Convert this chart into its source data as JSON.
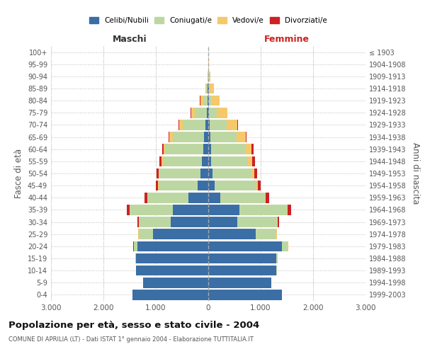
{
  "age_groups": [
    "0-4",
    "5-9",
    "10-14",
    "15-19",
    "20-24",
    "25-29",
    "30-34",
    "35-39",
    "40-44",
    "45-49",
    "50-54",
    "55-59",
    "60-64",
    "65-69",
    "70-74",
    "75-79",
    "80-84",
    "85-89",
    "90-94",
    "95-99",
    "100+"
  ],
  "birth_years": [
    "1999-2003",
    "1994-1998",
    "1989-1993",
    "1984-1988",
    "1979-1983",
    "1974-1978",
    "1969-1973",
    "1964-1968",
    "1959-1963",
    "1954-1958",
    "1949-1953",
    "1944-1948",
    "1939-1943",
    "1934-1938",
    "1929-1933",
    "1924-1928",
    "1919-1923",
    "1914-1918",
    "1909-1913",
    "1904-1908",
    "≤ 1903"
  ],
  "colors": {
    "celibi": "#3a6ea5",
    "coniugati": "#bdd7a3",
    "vedovi": "#f5c96a",
    "divorziati": "#cc2222"
  },
  "maschi": {
    "celibi": [
      1450,
      1250,
      1380,
      1380,
      1350,
      1050,
      720,
      680,
      380,
      200,
      150,
      120,
      100,
      80,
      60,
      30,
      15,
      10,
      5,
      2,
      2
    ],
    "coniugati": [
      0,
      0,
      5,
      15,
      70,
      280,
      600,
      820,
      780,
      750,
      780,
      750,
      720,
      600,
      430,
      230,
      80,
      30,
      10,
      0,
      0
    ],
    "vedovi": [
      0,
      0,
      0,
      0,
      5,
      5,
      5,
      5,
      5,
      5,
      10,
      20,
      30,
      60,
      70,
      70,
      60,
      20,
      5,
      0,
      0
    ],
    "divorziati": [
      0,
      0,
      0,
      0,
      5,
      5,
      20,
      55,
      55,
      45,
      40,
      40,
      30,
      15,
      10,
      10,
      5,
      0,
      0,
      0,
      0
    ]
  },
  "femmine": {
    "celibi": [
      1400,
      1200,
      1300,
      1300,
      1400,
      900,
      560,
      600,
      230,
      120,
      80,
      60,
      50,
      35,
      25,
      15,
      10,
      8,
      5,
      2,
      2
    ],
    "coniugati": [
      0,
      0,
      5,
      30,
      120,
      400,
      750,
      900,
      850,
      800,
      750,
      700,
      650,
      500,
      330,
      150,
      50,
      20,
      5,
      0,
      0
    ],
    "vedovi": [
      0,
      0,
      0,
      0,
      5,
      5,
      8,
      10,
      15,
      30,
      50,
      80,
      130,
      180,
      200,
      200,
      150,
      80,
      30,
      5,
      2
    ],
    "divorziati": [
      0,
      0,
      0,
      0,
      5,
      10,
      30,
      70,
      70,
      55,
      50,
      50,
      40,
      20,
      10,
      5,
      5,
      0,
      0,
      0,
      0
    ]
  },
  "xlim": 3000,
  "title": "Popolazione per età, sesso e stato civile - 2004",
  "subtitle": "COMUNE DI APRILIA (LT) - Dati ISTAT 1° gennaio 2004 - Elaborazione TUTTITALIA.IT",
  "xlabel_left": "Maschi",
  "xlabel_right": "Femmine",
  "ylabel": "Fasce di età",
  "ylabel_right": "Anni di nascita",
  "legend_labels": [
    "Celibi/Nubili",
    "Coniugati/e",
    "Vedovi/e",
    "Divorziati/e"
  ],
  "xticks": [
    -3000,
    -2000,
    -1000,
    0,
    1000,
    2000,
    3000
  ],
  "xticklabels": [
    "3.000",
    "2.000",
    "1.000",
    "0",
    "1.000",
    "2.000",
    "3.000"
  ],
  "background_color": "#ffffff",
  "grid_color": "#cccccc",
  "bar_height": 0.85
}
